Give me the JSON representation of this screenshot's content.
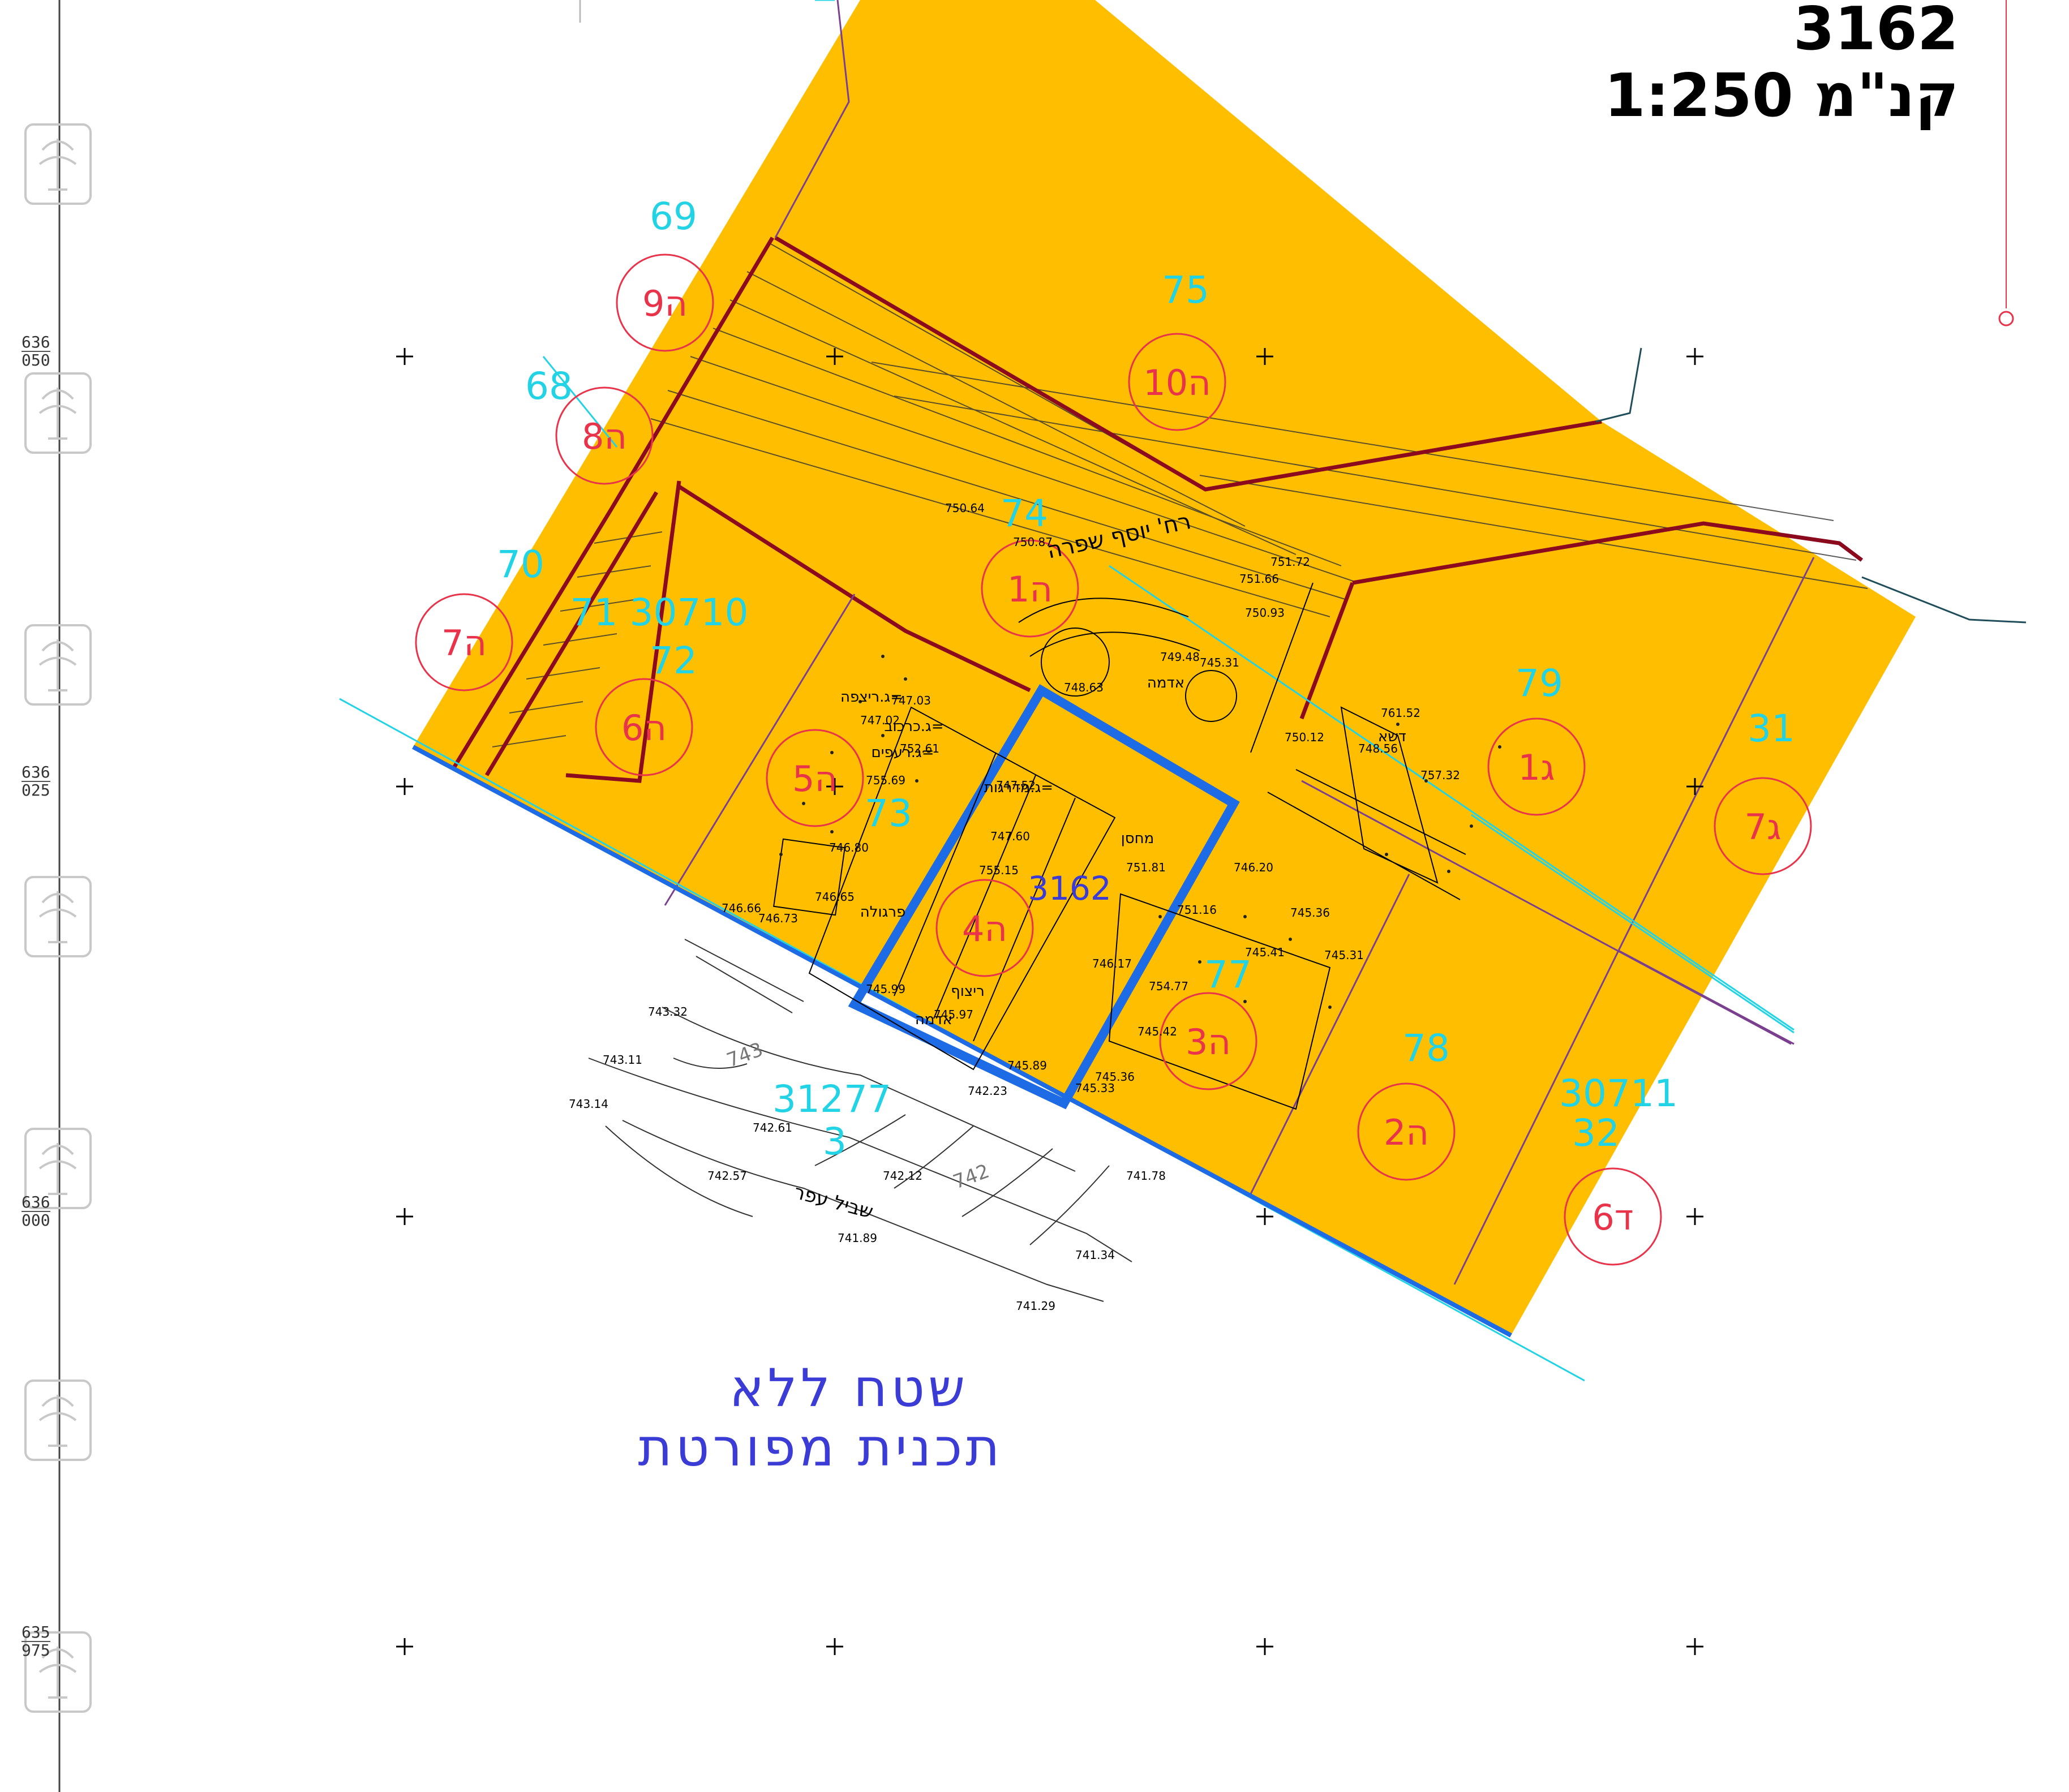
{
  "header": {
    "plan_number": "3162",
    "scale_label": "1:250 קנ\"מ"
  },
  "grid_labels": [
    {
      "top": "636",
      "bottom": "050"
    },
    {
      "top": "636",
      "bottom": "025"
    },
    {
      "top": "636",
      "bottom": "000"
    },
    {
      "top": "635",
      "bottom": "975"
    }
  ],
  "parcel_numbers": [
    "69",
    "75",
    "68",
    "74",
    "70",
    "72",
    "79",
    "31",
    "73",
    "77",
    "78",
    "30711",
    "32",
    "31277",
    "3",
    "30710"
  ],
  "lot_markers": [
    "9ה",
    "10ה",
    "8ה",
    "1ה",
    "7ה",
    "6ה",
    "5ה",
    "1ג",
    "7ג",
    "4ה",
    "3ה",
    "2ה",
    "6ד"
  ],
  "center_parcel": "3162",
  "plan_block": "71 30710",
  "street_label": "רח' יוסף שפרה",
  "path_label": "שביל עפר",
  "contour_labels": [
    "743",
    "742"
  ],
  "elevations": [
    "750.64",
    "750.87",
    "751.72",
    "751.66",
    "750.93",
    "745.31",
    "749.48",
    "748.63",
    "747.03",
    "747.02",
    "752.61",
    "755.69",
    "747.52",
    "747.60",
    "751.81",
    "746.80",
    "746.65",
    "746.66",
    "746.73",
    "755.15",
    "746.17",
    "754.77",
    "745.42",
    "745.41",
    "751.16",
    "746.20",
    "745.36",
    "745.31",
    "761.52",
    "750.12",
    "748.56",
    "757.32",
    "743.32",
    "743.11",
    "743.14",
    "742.61",
    "742.57",
    "742.12",
    "741.89",
    "741.34",
    "741.29",
    "742.23",
    "745.99",
    "745.97",
    "745.89",
    "745.33",
    "741.78",
    "745.36"
  ],
  "surface_labels": {
    "tile_floor": "ג.ריצפה=",
    "steps": "ג.מדרגות=",
    "roofs": "ג.רעפים=",
    "wall_top": "ג.כרכוב=",
    "soil": "אדמה",
    "paving": "ריצוף",
    "lawn": "דשא",
    "storage": "מחסן",
    "pergola": "פרגולה"
  },
  "bottom_note": {
    "line1": "שטח ללא",
    "line2": "תכנית מפורטת"
  },
  "colors": {
    "parcel_fill": "#FFBF00",
    "boundary": "#8B0A1E",
    "cyan": "#22D3E6",
    "building": "#1E6BE6",
    "marker": "#E8334A"
  }
}
